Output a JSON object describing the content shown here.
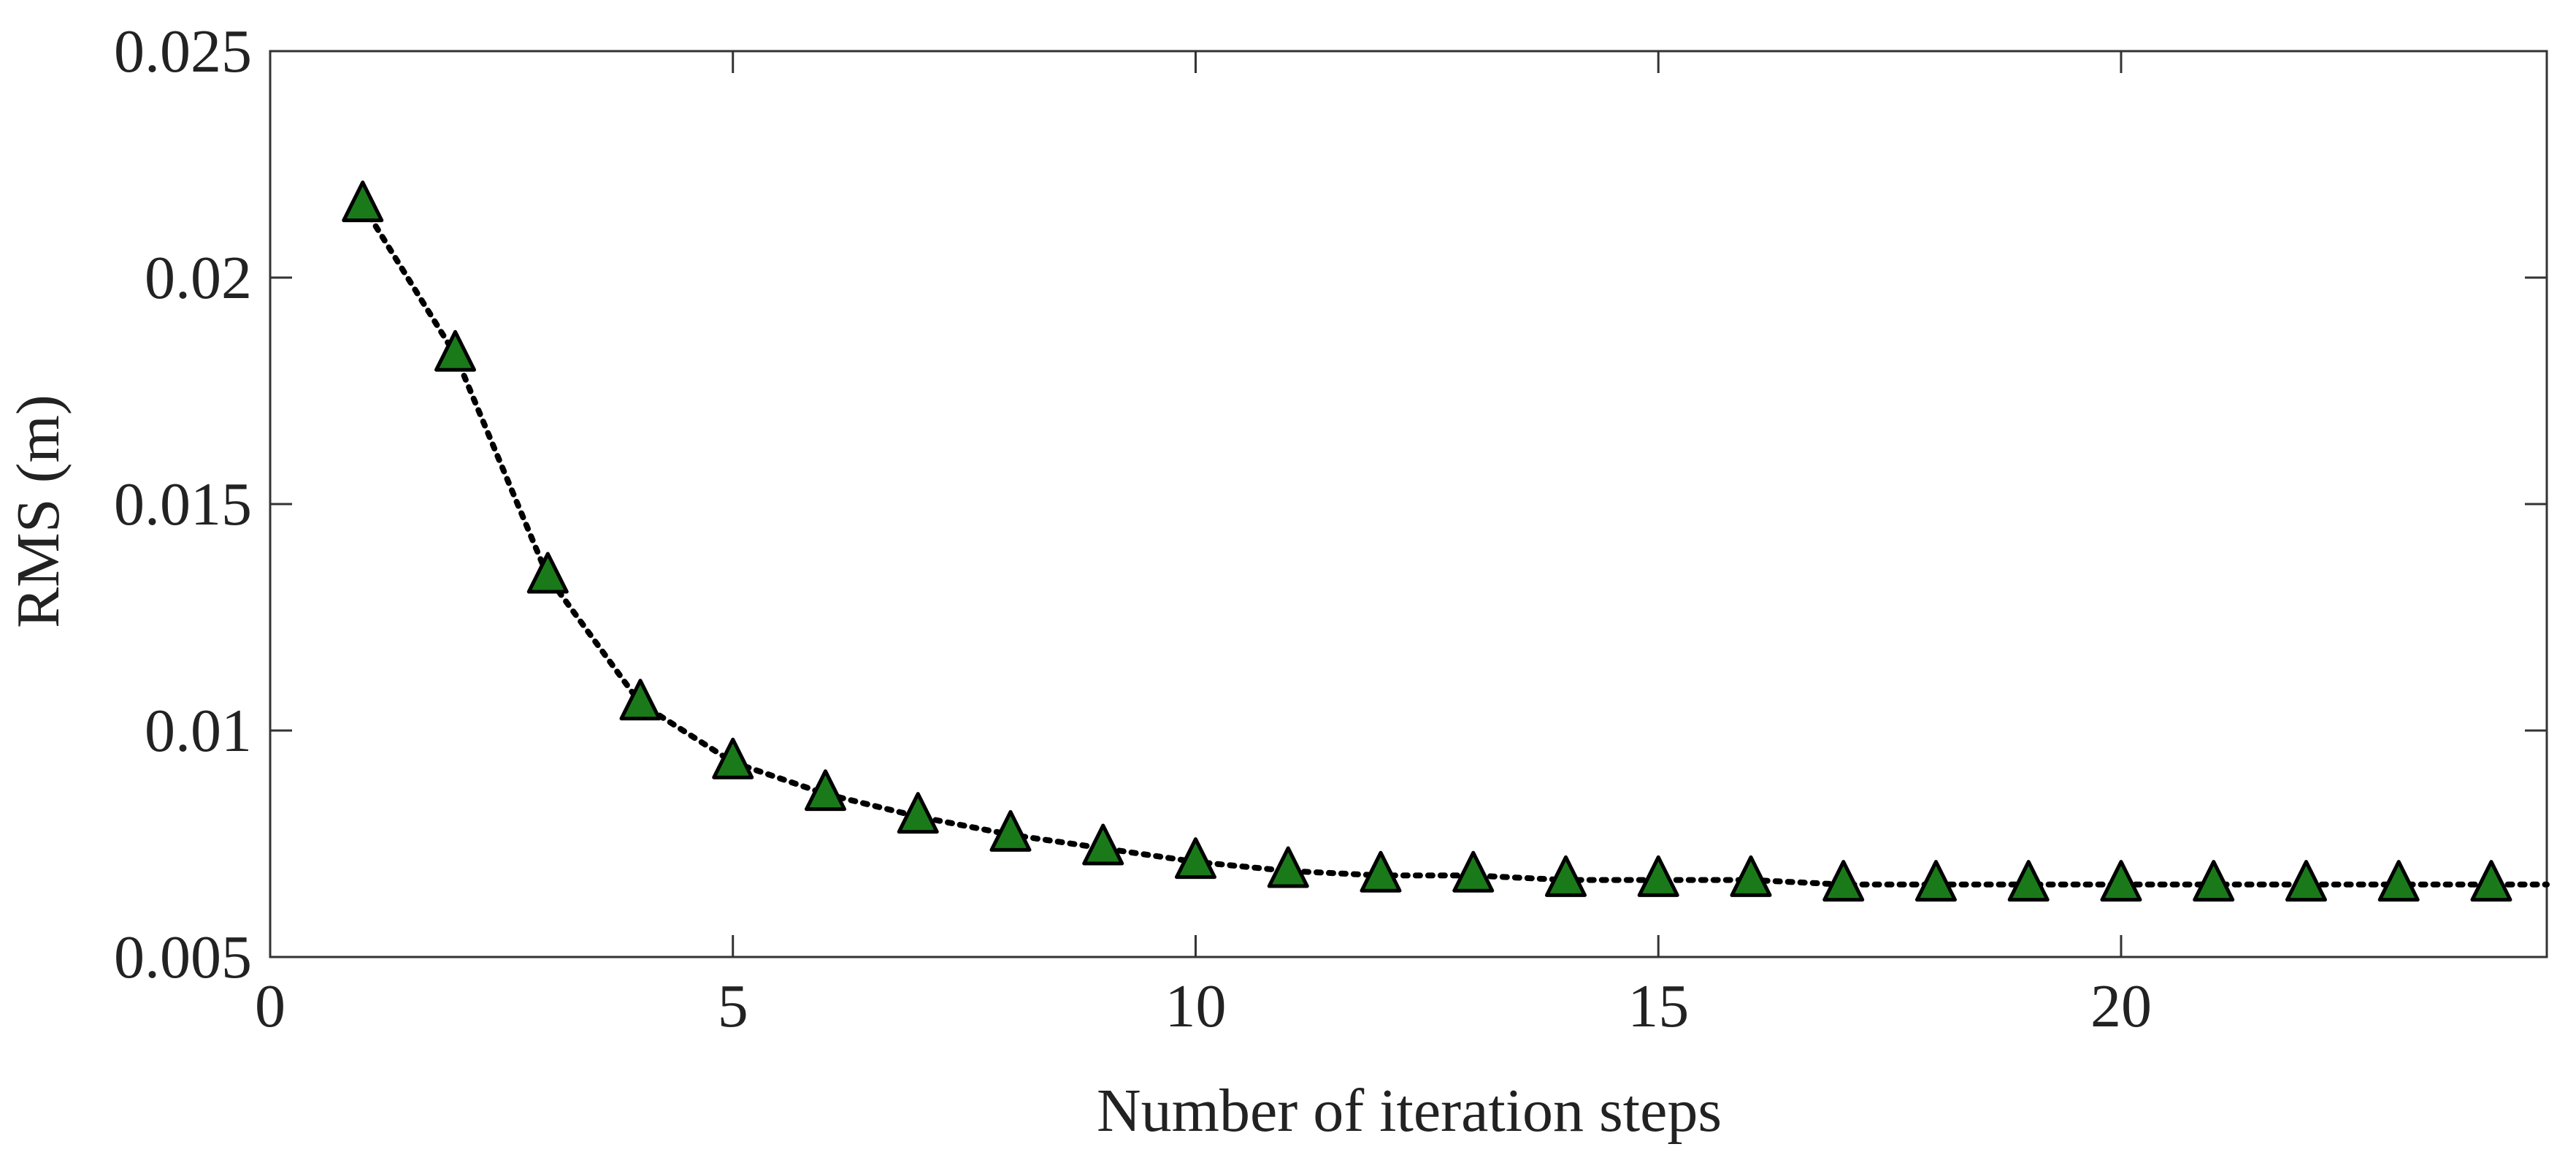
{
  "chart_data": {
    "type": "line",
    "title": "",
    "xlabel": "Number of iteration steps",
    "ylabel": "RMS (m)",
    "xlim": [
      0,
      24.6
    ],
    "ylim": [
      0.005,
      0.025
    ],
    "x_ticks": [
      0,
      5,
      10,
      15,
      20
    ],
    "x_tick_labels": [
      "0",
      "5",
      "10",
      "15",
      "20"
    ],
    "y_ticks": [
      0.005,
      0.01,
      0.015,
      0.02,
      0.025
    ],
    "y_tick_labels": [
      "0.005",
      "0.01",
      "0.015",
      "0.02",
      "0.025"
    ],
    "grid": false,
    "legend": "none",
    "series": [
      {
        "x": [
          1,
          2,
          3,
          4,
          5,
          6,
          7,
          8,
          9,
          10,
          11,
          12,
          13,
          14,
          15,
          16,
          17,
          18,
          19,
          20,
          21,
          22,
          23,
          24
        ],
        "values": [
          0.0216,
          0.0183,
          0.0134,
          0.0106,
          0.0093,
          0.0086,
          0.0081,
          0.0077,
          0.0074,
          0.0071,
          0.0069,
          0.0068,
          0.0068,
          0.0067,
          0.0067,
          0.0067,
          0.0066,
          0.0066,
          0.0066,
          0.0066,
          0.0066,
          0.0066,
          0.0066,
          0.0066
        ],
        "line_style": "dotted",
        "line_color": "#000000",
        "marker": "triangle",
        "marker_color": "#1a7a1a"
      }
    ]
  }
}
